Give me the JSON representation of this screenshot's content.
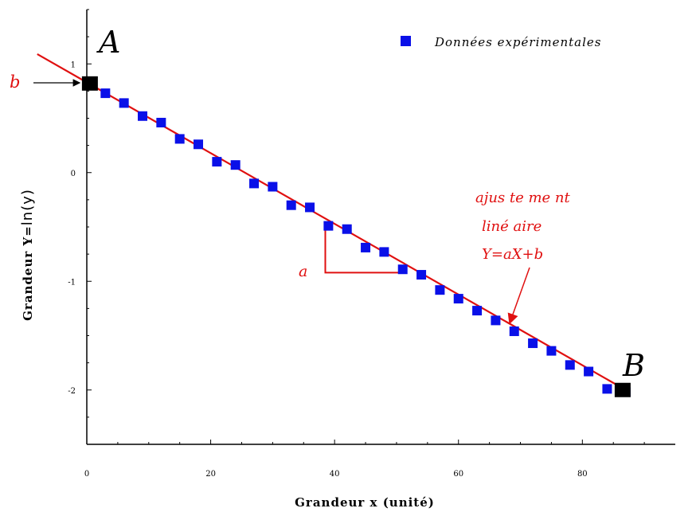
{
  "chart_data": {
    "type": "scatter",
    "xlabel": "Grandeur x (unité)",
    "ylabel_prefix": "Grandeur Y=",
    "ylabel_suffix": "ln(y)",
    "xlim": [
      0,
      95
    ],
    "ylim": [
      -2.5,
      1.5
    ],
    "x_ticks": [
      0,
      20,
      40,
      60,
      80
    ],
    "x_tick_labels": [
      "0",
      "20",
      "40",
      "60",
      "80"
    ],
    "y_ticks": [
      1,
      0,
      -1,
      -2
    ],
    "y_tick_labels": [
      "1",
      "0",
      "-1",
      "-2"
    ],
    "legend_position": "top-right",
    "series": [
      {
        "name": "Données expérimentales",
        "marker": "square",
        "color": "#0a10e8",
        "x": [
          3,
          6,
          9,
          12,
          15,
          18,
          21,
          24,
          27,
          30,
          33,
          36,
          39,
          42,
          45,
          48,
          51,
          54,
          57,
          60,
          63,
          66,
          69,
          72,
          75,
          78,
          81,
          84,
          87
        ],
        "y": [
          0.73,
          0.64,
          0.52,
          0.46,
          0.31,
          0.26,
          0.1,
          0.07,
          -0.1,
          -0.13,
          -0.3,
          -0.32,
          -0.49,
          -0.52,
          -0.69,
          -0.73,
          -0.89,
          -0.94,
          -1.08,
          -1.16,
          -1.27,
          -1.36,
          -1.46,
          -1.57,
          -1.64,
          -1.77,
          -1.83,
          -1.99,
          -2.02
        ]
      }
    ],
    "fit": {
      "color": "#e01010",
      "x": [
        -8,
        87
      ],
      "y": [
        1.09,
        -2.0
      ]
    },
    "points": {
      "A": {
        "x": 0.5,
        "y": 0.82
      },
      "B": {
        "x": 86.5,
        "y": -2.0
      }
    },
    "slope_triangle": {
      "x1": 38.5,
      "x2": 51,
      "y_top": -0.48,
      "y_bottom": -0.92
    }
  },
  "annotations": {
    "label_A": "A",
    "label_B": "B",
    "label_b": "b",
    "label_a": "a",
    "fit_line1": "ajus te me nt",
    "fit_line2": "liné aire",
    "fit_line3": "Y=aX+b",
    "legend_text": "Données expérimentales"
  },
  "colors": {
    "axis": "#000000",
    "fit": "#e01010",
    "data": "#0a10e8",
    "endpoints": "#000000"
  }
}
